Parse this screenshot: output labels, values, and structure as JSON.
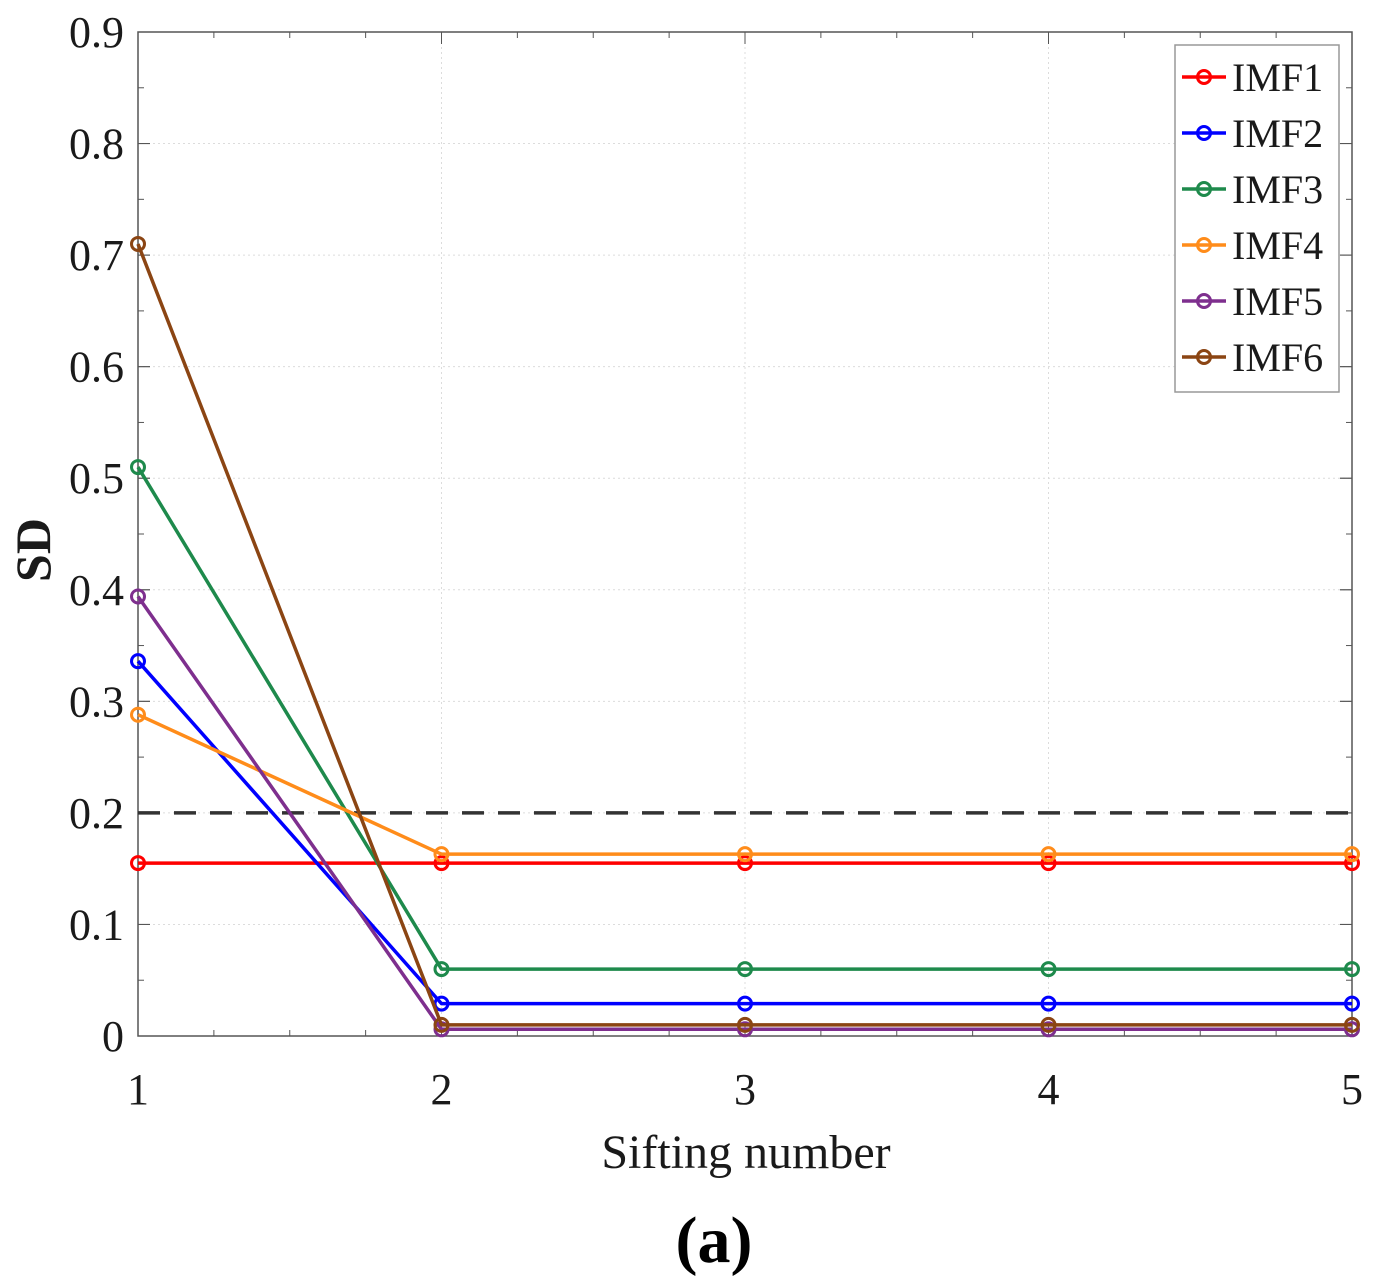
{
  "chart_data": {
    "type": "line",
    "title": "",
    "xlabel": "Sifting number",
    "ylabel": "SD",
    "panel_label": "(a)",
    "x": [
      1,
      2,
      3,
      4,
      5
    ],
    "xlim": [
      1,
      5
    ],
    "ylim": [
      0,
      0.9
    ],
    "xticks": [
      1,
      2,
      3,
      4,
      5
    ],
    "xtick_labels": [
      "1",
      "2",
      "3",
      "4",
      "5"
    ],
    "yticks": [
      0,
      0.1,
      0.2,
      0.3,
      0.4,
      0.5,
      0.6,
      0.7,
      0.8,
      0.9
    ],
    "ytick_labels": [
      "0",
      "0.1",
      "0.2",
      "0.3",
      "0.4",
      "0.5",
      "0.6",
      "0.7",
      "0.8",
      "0.9"
    ],
    "grid": true,
    "legend_position": "top-right",
    "threshold": {
      "value": 0.2,
      "color": "#333333",
      "style": "dashed"
    },
    "series": [
      {
        "name": "IMF1",
        "color": "#ff0000",
        "values": [
          0.155,
          0.155,
          0.155,
          0.155,
          0.155
        ]
      },
      {
        "name": "IMF2",
        "color": "#0000ff",
        "values": [
          0.336,
          0.029,
          0.029,
          0.029,
          0.029
        ]
      },
      {
        "name": "IMF3",
        "color": "#1e8a4c",
        "values": [
          0.51,
          0.06,
          0.06,
          0.06,
          0.06
        ]
      },
      {
        "name": "IMF4",
        "color": "#ff8c1a",
        "values": [
          0.288,
          0.163,
          0.163,
          0.163,
          0.163
        ]
      },
      {
        "name": "IMF5",
        "color": "#7e2f8e",
        "values": [
          0.394,
          0.006,
          0.006,
          0.006,
          0.006
        ]
      },
      {
        "name": "IMF6",
        "color": "#8b4513",
        "values": [
          0.71,
          0.01,
          0.01,
          0.01,
          0.01
        ]
      }
    ]
  }
}
